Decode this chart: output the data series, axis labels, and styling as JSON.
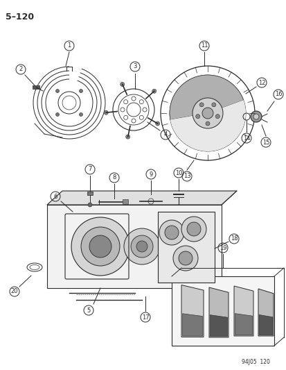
{
  "title": "5–120",
  "footer": "94J05  120",
  "bg_color": "#ffffff",
  "lc": "#2a2a2a",
  "page_label": "5–120"
}
